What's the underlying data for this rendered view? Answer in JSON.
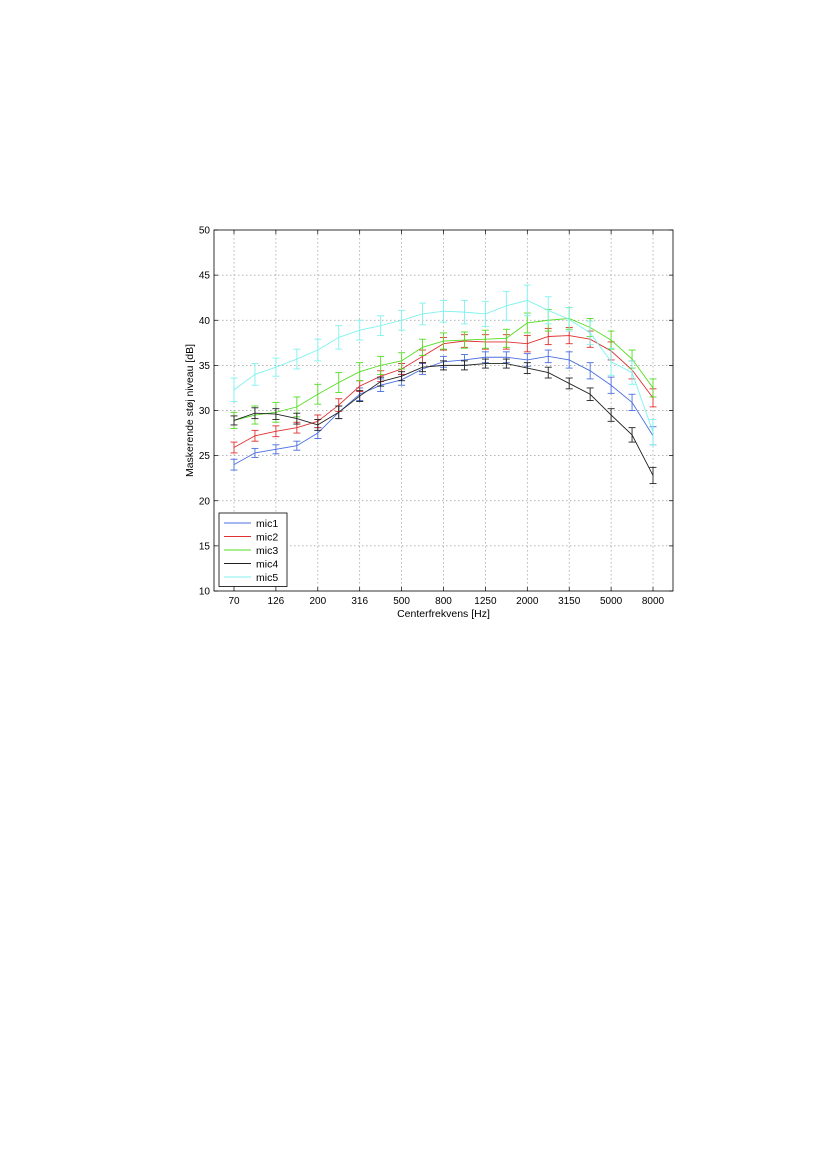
{
  "chart_data": {
    "type": "line",
    "xlabel": "Centerfrekvens [Hz]",
    "ylabel": "Maskerende støj niveau [dB]",
    "categories": [
      "70",
      "100",
      "126",
      "160",
      "200",
      "250",
      "316",
      "400",
      "500",
      "630",
      "800",
      "1000",
      "1250",
      "1600",
      "2000",
      "2500",
      "3150",
      "4000",
      "5000",
      "6300",
      "8000"
    ],
    "x_tick_labels": [
      "70",
      "126",
      "200",
      "316",
      "500",
      "800",
      "1250",
      "2000",
      "3150",
      "5000",
      "8000"
    ],
    "ylim": [
      10,
      50
    ],
    "y_ticks": [
      10,
      15,
      20,
      25,
      30,
      35,
      40,
      45,
      50
    ],
    "grid": true,
    "legend_position": "bottom-left",
    "series": [
      {
        "name": "mic1",
        "color": "#4a6fe0",
        "values": [
          24.0,
          25.3,
          25.7,
          26.1,
          27.5,
          29.8,
          31.8,
          32.8,
          33.4,
          34.6,
          35.4,
          35.6,
          35.9,
          35.9,
          35.6,
          36.0,
          35.6,
          34.4,
          32.8,
          30.9,
          27.2
        ],
        "errors": [
          0.6,
          0.5,
          0.5,
          0.5,
          0.6,
          0.7,
          0.7,
          0.7,
          0.6,
          0.6,
          0.6,
          0.6,
          0.6,
          0.6,
          0.7,
          0.7,
          0.9,
          0.9,
          0.9,
          0.9,
          1.0
        ]
      },
      {
        "name": "mic2",
        "color": "#e03030",
        "values": [
          25.9,
          27.2,
          27.7,
          28.1,
          28.8,
          30.6,
          32.7,
          33.8,
          34.6,
          36.0,
          37.4,
          37.7,
          37.6,
          37.6,
          37.4,
          38.2,
          38.3,
          37.9,
          36.6,
          34.5,
          31.4
        ],
        "errors": [
          0.6,
          0.6,
          0.6,
          0.6,
          0.7,
          0.7,
          0.6,
          0.6,
          0.6,
          0.7,
          0.7,
          0.7,
          0.8,
          0.8,
          0.9,
          0.9,
          0.9,
          0.9,
          1.0,
          1.0,
          1.0
        ]
      },
      {
        "name": "mic3",
        "color": "#55dd22",
        "values": [
          28.9,
          29.5,
          29.8,
          30.4,
          31.8,
          33.1,
          34.3,
          35.0,
          35.5,
          37.0,
          37.7,
          37.8,
          37.9,
          38.0,
          39.7,
          40.0,
          40.2,
          39.2,
          37.8,
          35.7,
          32.5
        ],
        "errors": [
          0.9,
          1.0,
          1.1,
          1.1,
          1.1,
          1.1,
          1.0,
          1.0,
          0.9,
          0.9,
          0.9,
          0.9,
          1.0,
          1.0,
          1.1,
          1.2,
          1.2,
          1.0,
          1.0,
          1.0,
          1.0
        ]
      },
      {
        "name": "mic4",
        "color": "#222222",
        "values": [
          28.9,
          29.7,
          29.6,
          29.1,
          28.4,
          29.8,
          31.6,
          33.2,
          33.8,
          34.8,
          35.0,
          35.0,
          35.2,
          35.2,
          34.7,
          34.2,
          33.0,
          31.8,
          29.5,
          27.3,
          22.8
        ],
        "errors": [
          0.5,
          0.6,
          0.6,
          0.6,
          0.6,
          0.7,
          0.6,
          0.5,
          0.5,
          0.5,
          0.5,
          0.5,
          0.5,
          0.5,
          0.6,
          0.6,
          0.6,
          0.7,
          0.7,
          0.8,
          0.9
        ]
      },
      {
        "name": "mic5",
        "color": "#7ff2ee",
        "values": [
          32.3,
          34.0,
          34.8,
          35.7,
          36.7,
          38.1,
          38.9,
          39.4,
          40.0,
          40.7,
          41.0,
          40.9,
          40.7,
          41.6,
          42.2,
          41.1,
          40.1,
          38.6,
          35.4,
          34.2,
          27.6
        ],
        "errors": [
          1.3,
          1.2,
          1.0,
          1.1,
          1.2,
          1.3,
          1.1,
          1.1,
          1.1,
          1.2,
          1.2,
          1.3,
          1.4,
          1.6,
          1.7,
          1.5,
          1.3,
          1.3,
          1.5,
          1.3,
          1.4
        ]
      }
    ]
  }
}
